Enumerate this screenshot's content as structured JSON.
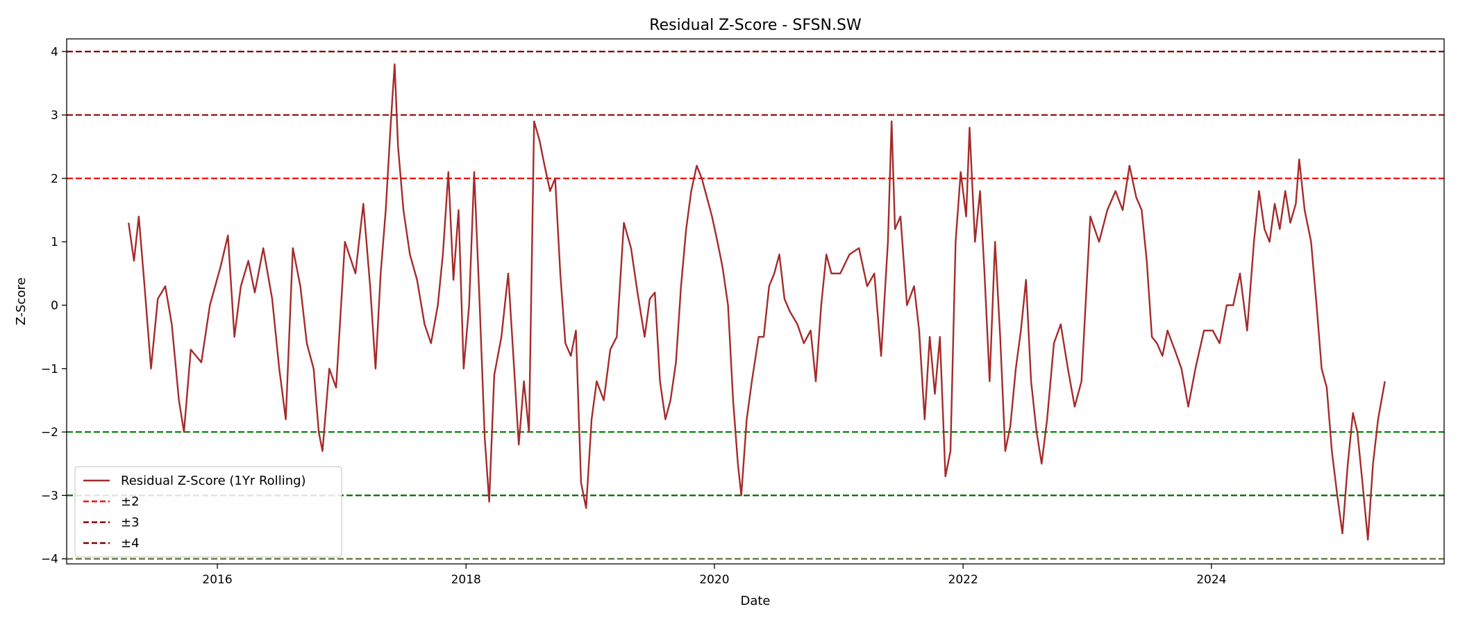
{
  "chart_data": {
    "type": "line",
    "title": "Residual Z-Score - SFSN.SW",
    "xlabel": "Date",
    "ylabel": "Z-Score",
    "xlim": [
      "2014-10-15",
      "2025-11-15"
    ],
    "ylim": [
      -4.08,
      4.2
    ],
    "x_ticks": [
      {
        "date": "2016-01-01",
        "label": "2016"
      },
      {
        "date": "2018-01-01",
        "label": "2018"
      },
      {
        "date": "2020-01-01",
        "label": "2020"
      },
      {
        "date": "2022-01-01",
        "label": "2022"
      },
      {
        "date": "2024-01-01",
        "label": "2024"
      }
    ],
    "y_ticks": [
      {
        "value": 4,
        "label": "4"
      },
      {
        "value": 3,
        "label": "3"
      },
      {
        "value": 2,
        "label": "2"
      },
      {
        "value": 1,
        "label": "1"
      },
      {
        "value": 0,
        "label": "0"
      },
      {
        "value": -1,
        "label": "−1"
      },
      {
        "value": -2,
        "label": "−2"
      },
      {
        "value": -3,
        "label": "−3"
      },
      {
        "value": -4,
        "label": "−4"
      }
    ],
    "grid": false,
    "legend_position": "lower-left",
    "legend": [
      {
        "label": "Residual Z-Score (1Yr Rolling)",
        "color": "#a52a2a",
        "style": "solid"
      },
      {
        "label": "±2",
        "color": "#ff0000",
        "style": "dashed"
      },
      {
        "label": "±3",
        "color": "#8b0000",
        "style": "dashed"
      },
      {
        "label": "±4",
        "color": "#800000",
        "style": "dashed"
      }
    ],
    "reference_lines": [
      {
        "y": 4,
        "color": "#800000"
      },
      {
        "y": 3,
        "color": "#8b0000"
      },
      {
        "y": 2,
        "color": "#ff0000"
      },
      {
        "y": -2,
        "color": "#008000"
      },
      {
        "y": -3,
        "color": "#006400"
      },
      {
        "y": -4,
        "color": "#556b2f"
      }
    ],
    "series": [
      {
        "name": "Residual Z-Score (1Yr Rolling)",
        "color": "#a52a2a",
        "points": [
          [
            "2015-04-15",
            1.3
          ],
          [
            "2015-05-01",
            0.7
          ],
          [
            "2015-05-15",
            1.4
          ],
          [
            "2015-06-01",
            0.3
          ],
          [
            "2015-06-20",
            -1.0
          ],
          [
            "2015-07-10",
            0.1
          ],
          [
            "2015-08-01",
            0.3
          ],
          [
            "2015-08-20",
            -0.3
          ],
          [
            "2015-09-10",
            -1.5
          ],
          [
            "2015-09-25",
            -2.0
          ],
          [
            "2015-10-15",
            -0.7
          ],
          [
            "2015-11-15",
            -0.9
          ],
          [
            "2015-12-10",
            0.0
          ],
          [
            "2016-01-10",
            0.6
          ],
          [
            "2016-02-01",
            1.1
          ],
          [
            "2016-02-20",
            -0.5
          ],
          [
            "2016-03-10",
            0.3
          ],
          [
            "2016-04-01",
            0.7
          ],
          [
            "2016-04-20",
            0.2
          ],
          [
            "2016-05-15",
            0.9
          ],
          [
            "2016-06-10",
            0.1
          ],
          [
            "2016-07-01",
            -1.0
          ],
          [
            "2016-07-20",
            -1.8
          ],
          [
            "2016-08-10",
            0.9
          ],
          [
            "2016-09-01",
            0.3
          ],
          [
            "2016-09-20",
            -0.6
          ],
          [
            "2016-10-10",
            -1.0
          ],
          [
            "2016-10-25",
            -2.0
          ],
          [
            "2016-11-05",
            -2.3
          ],
          [
            "2016-11-25",
            -1.0
          ],
          [
            "2016-12-15",
            -1.3
          ],
          [
            "2017-01-10",
            1.0
          ],
          [
            "2017-02-10",
            0.5
          ],
          [
            "2017-03-05",
            1.6
          ],
          [
            "2017-03-25",
            0.3
          ],
          [
            "2017-04-10",
            -1.0
          ],
          [
            "2017-04-25",
            0.5
          ],
          [
            "2017-05-10",
            1.5
          ],
          [
            "2017-05-25",
            2.9
          ],
          [
            "2017-06-05",
            3.8
          ],
          [
            "2017-06-15",
            2.5
          ],
          [
            "2017-07-01",
            1.5
          ],
          [
            "2017-07-20",
            0.8
          ],
          [
            "2017-08-10",
            0.4
          ],
          [
            "2017-09-01",
            -0.3
          ],
          [
            "2017-09-20",
            -0.6
          ],
          [
            "2017-10-10",
            0.0
          ],
          [
            "2017-10-25",
            0.8
          ],
          [
            "2017-11-10",
            2.1
          ],
          [
            "2017-11-25",
            0.4
          ],
          [
            "2017-12-10",
            1.5
          ],
          [
            "2017-12-25",
            -1.0
          ],
          [
            "2018-01-10",
            0.0
          ],
          [
            "2018-01-25",
            2.1
          ],
          [
            "2018-02-10",
            0.0
          ],
          [
            "2018-02-25",
            -2.1
          ],
          [
            "2018-03-10",
            -3.1
          ],
          [
            "2018-03-25",
            -1.1
          ],
          [
            "2018-04-15",
            -0.5
          ],
          [
            "2018-05-05",
            0.5
          ],
          [
            "2018-05-20",
            -0.8
          ],
          [
            "2018-06-05",
            -2.2
          ],
          [
            "2018-06-20",
            -1.2
          ],
          [
            "2018-07-05",
            -2.0
          ],
          [
            "2018-07-20",
            2.9
          ],
          [
            "2018-08-05",
            2.6
          ],
          [
            "2018-08-20",
            2.2
          ],
          [
            "2018-09-05",
            1.8
          ],
          [
            "2018-09-20",
            2.0
          ],
          [
            "2018-10-05",
            0.5
          ],
          [
            "2018-10-20",
            -0.6
          ],
          [
            "2018-11-05",
            -0.8
          ],
          [
            "2018-11-20",
            -0.4
          ],
          [
            "2018-12-05",
            -2.8
          ],
          [
            "2018-12-20",
            -3.2
          ],
          [
            "2019-01-05",
            -1.8
          ],
          [
            "2019-01-20",
            -1.2
          ],
          [
            "2019-02-10",
            -1.5
          ],
          [
            "2019-03-01",
            -0.7
          ],
          [
            "2019-03-20",
            -0.5
          ],
          [
            "2019-04-10",
            1.3
          ],
          [
            "2019-05-01",
            0.9
          ],
          [
            "2019-05-20",
            0.2
          ],
          [
            "2019-06-10",
            -0.5
          ],
          [
            "2019-06-25",
            0.1
          ],
          [
            "2019-07-10",
            0.2
          ],
          [
            "2019-07-25",
            -1.2
          ],
          [
            "2019-08-10",
            -1.8
          ],
          [
            "2019-08-25",
            -1.5
          ],
          [
            "2019-09-10",
            -0.9
          ],
          [
            "2019-09-25",
            0.3
          ],
          [
            "2019-10-10",
            1.2
          ],
          [
            "2019-10-25",
            1.8
          ],
          [
            "2019-11-10",
            2.2
          ],
          [
            "2019-11-25",
            2.0
          ],
          [
            "2019-12-10",
            1.7
          ],
          [
            "2019-12-25",
            1.4
          ],
          [
            "2020-01-10",
            1.0
          ],
          [
            "2020-01-25",
            0.6
          ],
          [
            "2020-02-10",
            0.0
          ],
          [
            "2020-02-25",
            -1.5
          ],
          [
            "2020-03-10",
            -2.5
          ],
          [
            "2020-03-20",
            -3.0
          ],
          [
            "2020-04-05",
            -1.8
          ],
          [
            "2020-04-20",
            -1.2
          ],
          [
            "2020-05-10",
            -0.5
          ],
          [
            "2020-05-25",
            -0.5
          ],
          [
            "2020-06-10",
            0.3
          ],
          [
            "2020-06-25",
            0.5
          ],
          [
            "2020-07-10",
            0.8
          ],
          [
            "2020-07-25",
            0.1
          ],
          [
            "2020-08-10",
            -0.1
          ],
          [
            "2020-09-01",
            -0.3
          ],
          [
            "2020-09-20",
            -0.6
          ],
          [
            "2020-10-10",
            -0.4
          ],
          [
            "2020-10-25",
            -1.2
          ],
          [
            "2020-11-10",
            0.0
          ],
          [
            "2020-11-25",
            0.8
          ],
          [
            "2020-12-10",
            0.5
          ],
          [
            "2021-01-05",
            0.5
          ],
          [
            "2021-02-01",
            0.8
          ],
          [
            "2021-03-01",
            0.9
          ],
          [
            "2021-03-25",
            0.3
          ],
          [
            "2021-04-15",
            0.5
          ],
          [
            "2021-05-05",
            -0.8
          ],
          [
            "2021-05-25",
            1.0
          ],
          [
            "2021-06-05",
            2.9
          ],
          [
            "2021-06-15",
            1.2
          ],
          [
            "2021-07-01",
            1.4
          ],
          [
            "2021-07-20",
            0.0
          ],
          [
            "2021-08-10",
            0.3
          ],
          [
            "2021-08-25",
            -0.4
          ],
          [
            "2021-09-10",
            -1.8
          ],
          [
            "2021-09-25",
            -0.5
          ],
          [
            "2021-10-10",
            -1.4
          ],
          [
            "2021-10-25",
            -0.5
          ],
          [
            "2021-11-10",
            -2.7
          ],
          [
            "2021-11-25",
            -2.3
          ],
          [
            "2021-12-10",
            1.0
          ],
          [
            "2021-12-25",
            2.1
          ],
          [
            "2022-01-10",
            1.4
          ],
          [
            "2022-01-20",
            2.8
          ],
          [
            "2022-02-05",
            1.0
          ],
          [
            "2022-02-20",
            1.8
          ],
          [
            "2022-03-05",
            0.5
          ],
          [
            "2022-03-20",
            -1.2
          ],
          [
            "2022-04-05",
            1.0
          ],
          [
            "2022-04-20",
            -0.5
          ],
          [
            "2022-05-05",
            -2.3
          ],
          [
            "2022-05-20",
            -1.9
          ],
          [
            "2022-06-05",
            -1.0
          ],
          [
            "2022-06-20",
            -0.4
          ],
          [
            "2022-07-05",
            0.4
          ],
          [
            "2022-07-20",
            -1.2
          ],
          [
            "2022-08-05",
            -2.0
          ],
          [
            "2022-08-20",
            -2.5
          ],
          [
            "2022-09-05",
            -1.8
          ],
          [
            "2022-09-25",
            -0.6
          ],
          [
            "2022-10-15",
            -0.3
          ],
          [
            "2022-11-05",
            -1.0
          ],
          [
            "2022-11-25",
            -1.6
          ],
          [
            "2022-12-15",
            -1.2
          ],
          [
            "2023-01-10",
            1.4
          ],
          [
            "2023-02-05",
            1.0
          ],
          [
            "2023-03-01",
            1.5
          ],
          [
            "2023-03-25",
            1.8
          ],
          [
            "2023-04-15",
            1.5
          ],
          [
            "2023-05-05",
            2.2
          ],
          [
            "2023-05-25",
            1.7
          ],
          [
            "2023-06-10",
            1.5
          ],
          [
            "2023-06-25",
            0.7
          ],
          [
            "2023-07-10",
            -0.5
          ],
          [
            "2023-07-25",
            -0.6
          ],
          [
            "2023-08-10",
            -0.8
          ],
          [
            "2023-08-25",
            -0.4
          ],
          [
            "2023-09-15",
            -0.7
          ],
          [
            "2023-10-05",
            -1.0
          ],
          [
            "2023-10-25",
            -1.6
          ],
          [
            "2023-11-15",
            -1.0
          ],
          [
            "2023-12-10",
            -0.4
          ],
          [
            "2024-01-05",
            -0.4
          ],
          [
            "2024-01-25",
            -0.6
          ],
          [
            "2024-02-15",
            0.0
          ],
          [
            "2024-03-05",
            0.0
          ],
          [
            "2024-03-25",
            0.5
          ],
          [
            "2024-04-15",
            -0.4
          ],
          [
            "2024-05-05",
            1.0
          ],
          [
            "2024-05-20",
            1.8
          ],
          [
            "2024-06-05",
            1.2
          ],
          [
            "2024-06-20",
            1.0
          ],
          [
            "2024-07-05",
            1.6
          ],
          [
            "2024-07-20",
            1.2
          ],
          [
            "2024-08-05",
            1.8
          ],
          [
            "2024-08-20",
            1.3
          ],
          [
            "2024-09-05",
            1.6
          ],
          [
            "2024-09-15",
            2.3
          ],
          [
            "2024-10-01",
            1.5
          ],
          [
            "2024-10-20",
            1.0
          ],
          [
            "2024-11-05",
            0.0
          ],
          [
            "2024-11-20",
            -1.0
          ],
          [
            "2024-12-05",
            -1.3
          ],
          [
            "2024-12-20",
            -2.3
          ],
          [
            "2025-01-05",
            -3.0
          ],
          [
            "2025-01-20",
            -3.6
          ],
          [
            "2025-02-05",
            -2.5
          ],
          [
            "2025-02-20",
            -1.7
          ],
          [
            "2025-03-05",
            -2.0
          ],
          [
            "2025-03-20",
            -2.8
          ],
          [
            "2025-04-05",
            -3.7
          ],
          [
            "2025-04-20",
            -2.5
          ],
          [
            "2025-05-05",
            -1.8
          ],
          [
            "2025-05-25",
            -1.2
          ]
        ]
      }
    ]
  }
}
